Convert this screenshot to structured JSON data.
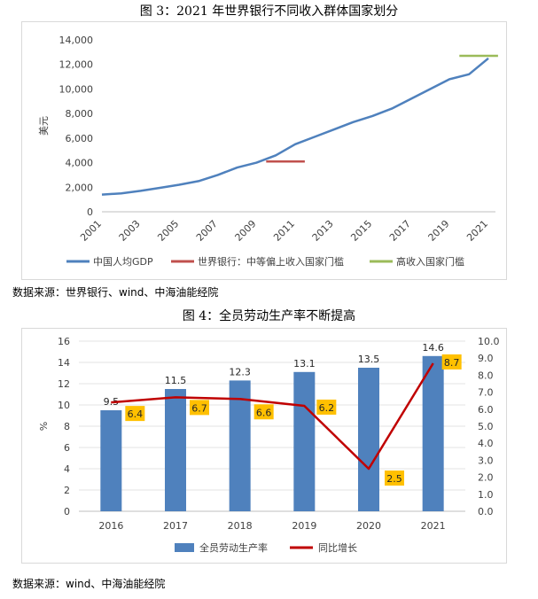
{
  "page": {
    "fig3_title": "图 3：2021 年世界银行不同收入群体国家划分",
    "fig3_source": "数据来源：世界银行、wind、中海油能经院",
    "fig4_title": "图 4：全员劳动生产率不断提高",
    "fig4_source": "数据来源：wind、中海油能经院"
  },
  "chart_data": [
    {
      "type": "line",
      "title": "图 3：2021 年世界银行不同收入群体国家划分",
      "ylabel": "美元",
      "xlabel": "",
      "ylim": [
        0,
        14000
      ],
      "yticks": [
        0,
        2000,
        4000,
        6000,
        8000,
        10000,
        12000,
        14000
      ],
      "ytick_labels": [
        "0",
        "2,000",
        "4,000",
        "6,000",
        "8,000",
        "10,000",
        "12,000",
        "14,000"
      ],
      "xlim": [
        2001,
        2021
      ],
      "xtick_labels": [
        "2001",
        "2003",
        "2005",
        "2007",
        "2009",
        "2011",
        "2013",
        "2015",
        "2017",
        "2019",
        "2021"
      ],
      "grid": false,
      "legend_position": "bottom",
      "colors": {
        "china": "#4f81bd",
        "upper_middle": "#c0504d",
        "high": "#9bbb59"
      },
      "series": [
        {
          "name": "中国人均GDP",
          "x": [
            2001,
            2002,
            2003,
            2004,
            2005,
            2006,
            2007,
            2008,
            2009,
            2010,
            2011,
            2012,
            2013,
            2014,
            2015,
            2016,
            2017,
            2018,
            2019,
            2020,
            2021
          ],
          "y": [
            1400,
            1500,
            1700,
            1950,
            2200,
            2500,
            3000,
            3600,
            4000,
            4600,
            5500,
            6100,
            6700,
            7300,
            7800,
            8400,
            9200,
            10000,
            10800,
            11200,
            12500
          ]
        },
        {
          "name": "世界银行：中等偏上收入国家门槛",
          "x": [
            2009.5,
            2011.5
          ],
          "y": [
            4100,
            4100
          ]
        },
        {
          "name": "高收入国家门槛",
          "x": [
            2019.5,
            2021.5
          ],
          "y": [
            12700,
            12700
          ]
        }
      ]
    },
    {
      "type": "bar",
      "title": "图 4：全员劳动生产率不断提高",
      "categories": [
        "2016",
        "2017",
        "2018",
        "2019",
        "2020",
        "2021"
      ],
      "ylabel": "%",
      "ylim": [
        0,
        16
      ],
      "yticks": [
        0,
        2,
        4,
        6,
        8,
        10,
        12,
        14,
        16
      ],
      "ytick_labels": [
        "0",
        "2",
        "4",
        "6",
        "8",
        "10",
        "12",
        "14",
        "16"
      ],
      "y2lim": [
        0,
        10
      ],
      "y2ticks": [
        0,
        1,
        2,
        3,
        4,
        5,
        6,
        7,
        8,
        9,
        10
      ],
      "y2tick_labels": [
        "0.0",
        "1.0",
        "2.0",
        "3.0",
        "4.0",
        "5.0",
        "6.0",
        "7.0",
        "8.0",
        "9.0",
        "10.0"
      ],
      "grid": true,
      "legend_position": "bottom",
      "colors": {
        "bar": "#4f81bd",
        "line": "#c00000",
        "label_bg": "#ffc000"
      },
      "series": [
        {
          "name": "全员劳动生产率",
          "type": "bar",
          "axis": "left",
          "values": [
            9.5,
            11.5,
            12.3,
            13.1,
            13.5,
            14.6
          ],
          "labels": [
            "9.5",
            "11.5",
            "12.3",
            "13.1",
            "13.5",
            "14.6"
          ]
        },
        {
          "name": "同比增长",
          "type": "line",
          "axis": "right",
          "values": [
            6.4,
            6.7,
            6.6,
            6.2,
            2.5,
            8.7
          ],
          "labels": [
            "6.4",
            "6.7",
            "6.6",
            "6.2",
            "2.5",
            "8.7"
          ]
        }
      ]
    }
  ]
}
